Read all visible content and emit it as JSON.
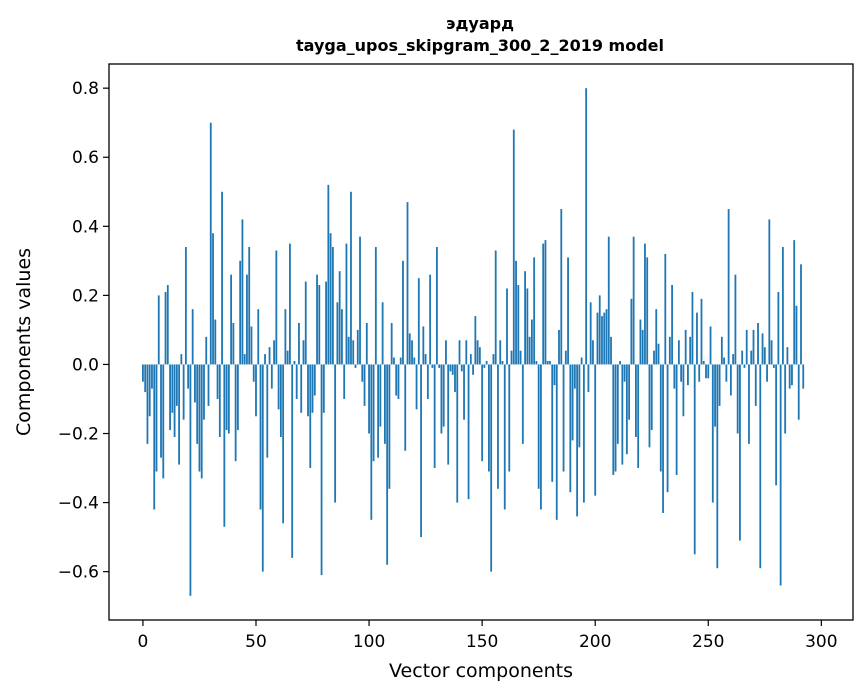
{
  "chart_data": {
    "type": "bar",
    "title": "эдуард",
    "subtitle": "tayga_upos_skipgram_300_2_2019 model",
    "xlabel": "Vector components",
    "ylabel": "Components values",
    "xlim": [
      -15,
      314
    ],
    "ylim": [
      -0.74,
      0.87
    ],
    "xticks": [
      0,
      50,
      100,
      150,
      200,
      250,
      300
    ],
    "yticks": [
      -0.6,
      -0.4,
      -0.2,
      0.0,
      0.2,
      0.4,
      0.6,
      0.8
    ],
    "xtick_labels": [
      "0",
      "50",
      "100",
      "150",
      "200",
      "250",
      "300"
    ],
    "ytick_labels": [
      "−0.6",
      "−0.4",
      "−0.2",
      "0.0",
      "0.2",
      "0.4",
      "0.6",
      "0.8"
    ],
    "bar_color": "#1f77b4",
    "grid": false,
    "values": [
      -0.05,
      -0.08,
      -0.23,
      -0.15,
      -0.07,
      -0.42,
      -0.31,
      0.2,
      -0.27,
      -0.33,
      0.21,
      0.23,
      -0.19,
      -0.14,
      -0.21,
      -0.12,
      -0.29,
      0.03,
      -0.16,
      0.34,
      -0.07,
      -0.67,
      0.16,
      -0.11,
      -0.23,
      -0.31,
      -0.33,
      -0.16,
      0.08,
      -0.12,
      0.7,
      0.38,
      0.13,
      -0.1,
      -0.21,
      0.5,
      -0.47,
      -0.19,
      -0.2,
      0.26,
      0.12,
      -0.28,
      -0.19,
      0.3,
      0.42,
      0.03,
      0.26,
      0.34,
      0.11,
      -0.05,
      -0.15,
      0.16,
      -0.42,
      -0.6,
      0.03,
      -0.27,
      0.05,
      -0.07,
      0.07,
      0.33,
      -0.13,
      -0.21,
      -0.46,
      0.16,
      0.04,
      0.35,
      -0.56,
      0.01,
      -0.1,
      0.12,
      -0.14,
      0.07,
      0.24,
      -0.15,
      -0.3,
      -0.14,
      -0.09,
      0.26,
      0.23,
      -0.61,
      -0.14,
      0.24,
      0.52,
      0.38,
      0.34,
      -0.4,
      0.18,
      0.27,
      0.16,
      -0.1,
      0.35,
      0.08,
      0.5,
      0.07,
      -0.01,
      0.1,
      0.37,
      -0.05,
      -0.12,
      0.12,
      -0.2,
      -0.45,
      -0.28,
      0.34,
      -0.27,
      -0.18,
      0.18,
      -0.23,
      -0.58,
      -0.36,
      0.12,
      0.02,
      -0.09,
      -0.1,
      0.02,
      0.3,
      -0.25,
      0.47,
      0.09,
      0.07,
      0.02,
      -0.13,
      0.25,
      -0.5,
      0.11,
      0.03,
      -0.1,
      0.26,
      -0.01,
      -0.3,
      0.34,
      -0.01,
      -0.2,
      -0.18,
      0.07,
      -0.29,
      -0.02,
      -0.03,
      -0.08,
      -0.4,
      0.07,
      -0.02,
      -0.16,
      0.07,
      -0.39,
      0.03,
      -0.03,
      0.14,
      0.07,
      0.05,
      -0.28,
      -0.01,
      0.01,
      -0.31,
      -0.6,
      0.03,
      0.33,
      -0.36,
      0.07,
      0.01,
      -0.42,
      0.22,
      -0.31,
      0.04,
      0.68,
      0.3,
      0.23,
      0.04,
      -0.23,
      0.27,
      0.22,
      0.08,
      0.13,
      0.31,
      0.01,
      -0.36,
      -0.42,
      0.35,
      0.36,
      0.01,
      0.01,
      -0.34,
      -0.06,
      -0.45,
      0.1,
      0.45,
      -0.31,
      0.04,
      0.31,
      -0.37,
      -0.22,
      -0.07,
      -0.44,
      -0.24,
      0.02,
      -0.4,
      0.8,
      -0.08,
      0.18,
      0.07,
      -0.38,
      0.15,
      0.2,
      0.14,
      0.15,
      0.16,
      0.37,
      0.08,
      -0.32,
      -0.31,
      -0.23,
      0.01,
      -0.29,
      -0.05,
      -0.26,
      -0.16,
      0.19,
      0.37,
      -0.21,
      -0.3,
      0.13,
      0.1,
      0.35,
      0.31,
      -0.24,
      -0.19,
      0.04,
      0.16,
      0.06,
      -0.31,
      -0.43,
      0.32,
      -0.37,
      0.08,
      0.23,
      -0.07,
      -0.32,
      0.07,
      -0.05,
      -0.15,
      0.1,
      -0.06,
      0.08,
      0.21,
      -0.55,
      0.15,
      -0.05,
      0.19,
      0.01,
      -0.04,
      -0.04,
      0.11,
      -0.4,
      -0.18,
      -0.59,
      -0.12,
      0.08,
      0.02,
      -0.05,
      0.45,
      -0.09,
      0.03,
      0.26,
      -0.2,
      -0.51,
      0.04,
      -0.01,
      0.1,
      -0.23,
      0.04,
      0.1,
      -0.12,
      0.12,
      -0.59,
      0.09,
      0.05,
      -0.05,
      0.42,
      0.07,
      -0.01,
      -0.35,
      0.21,
      -0.64,
      0.34,
      -0.2,
      0.05,
      -0.07,
      -0.06,
      0.36,
      0.17,
      -0.16,
      0.29,
      -0.07
    ]
  }
}
